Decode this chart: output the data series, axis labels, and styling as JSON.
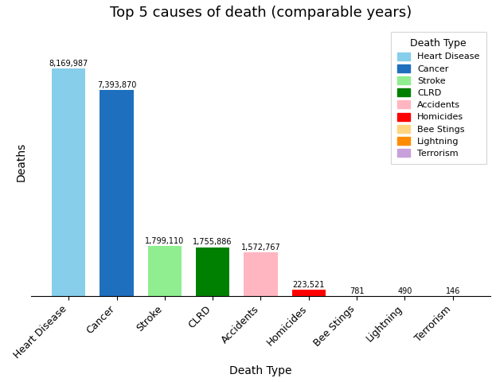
{
  "categories": [
    "Heart Disease",
    "Cancer",
    "Stroke",
    "CLRD",
    "Accidents",
    "Homicides",
    "Bee Stings",
    "Lightning",
    "Terrorism"
  ],
  "values": [
    8169987,
    7393870,
    1799110,
    1755886,
    1572767,
    223521,
    781,
    490,
    146
  ],
  "labels": [
    "8,169,987",
    "7,393,870",
    "1,799,110",
    "1,755,886",
    "1,572,767",
    "223,521",
    "781",
    "490",
    "146"
  ],
  "colors": [
    "#87CEEB",
    "#1F6FBF",
    "#90EE90",
    "#008000",
    "#FFB6C1",
    "#FF0000",
    "#FFD580",
    "#FF8C00",
    "#C8A0DC"
  ],
  "title": "Top 5 causes of death (comparable years)",
  "xlabel": "Death Type",
  "ylabel": "Deaths",
  "legend_title": "Death Type",
  "legend_labels": [
    "Heart Disease",
    "Cancer",
    "Stroke",
    "CLRD",
    "Accidents",
    "Homicides",
    "Bee Stings",
    "Lightning",
    "Terrorism"
  ],
  "legend_colors": [
    "#87CEEB",
    "#1F6FBF",
    "#90EE90",
    "#008000",
    "#FFB6C1",
    "#FF0000",
    "#FFD580",
    "#FF8C00",
    "#C8A0DC"
  ],
  "figsize": [
    6.23,
    4.8
  ],
  "dpi": 100
}
